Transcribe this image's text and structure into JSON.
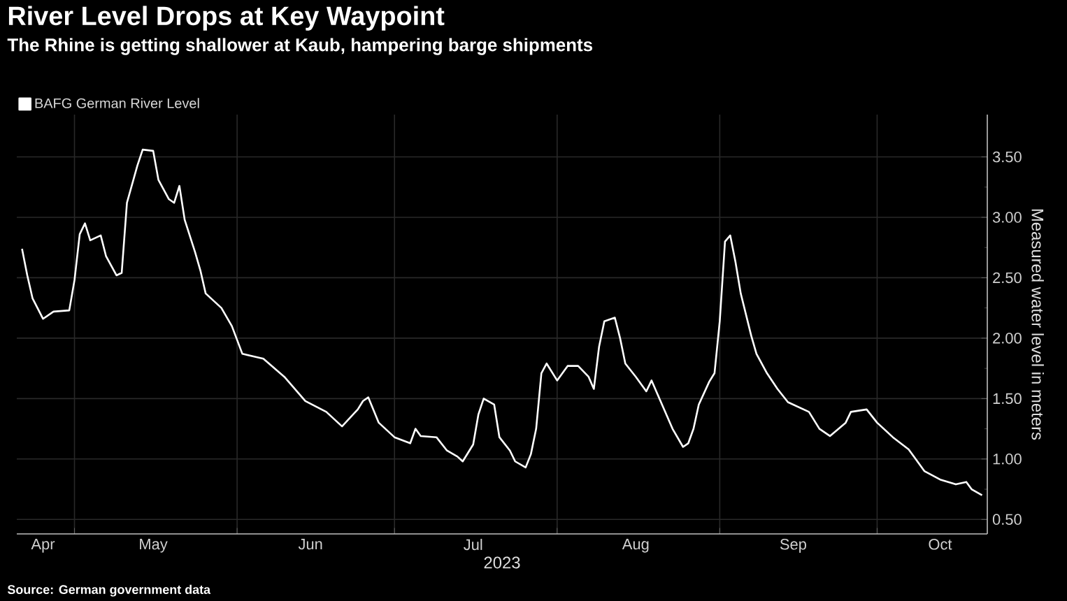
{
  "chart_data": {
    "type": "line",
    "title": "River Level Drops at Key Waypoint",
    "subtitle": "The Rhine is getting shallower at Kaub, hampering barge shipments",
    "xlabel": "2023",
    "ylabel": "Measured water level in meters",
    "annotations": [
      "Source: German government data"
    ],
    "x": [
      "2023-04-21",
      "2023-04-22",
      "2023-04-23",
      "2023-04-25",
      "2023-04-27",
      "2023-04-30",
      "2023-05-01",
      "2023-05-02",
      "2023-05-03",
      "2023-05-04",
      "2023-05-06",
      "2023-05-07",
      "2023-05-09",
      "2023-05-10",
      "2023-05-11",
      "2023-05-13",
      "2023-05-14",
      "2023-05-16",
      "2023-05-17",
      "2023-05-19",
      "2023-05-20",
      "2023-05-21",
      "2023-05-22",
      "2023-05-24",
      "2023-05-25",
      "2023-05-26",
      "2023-05-29",
      "2023-05-31",
      "2023-06-02",
      "2023-06-06",
      "2023-06-10",
      "2023-06-14",
      "2023-06-18",
      "2023-06-21",
      "2023-06-24",
      "2023-06-25",
      "2023-06-26",
      "2023-06-28",
      "2023-07-01",
      "2023-07-04",
      "2023-07-05",
      "2023-07-06",
      "2023-07-09",
      "2023-07-11",
      "2023-07-13",
      "2023-07-14",
      "2023-07-16",
      "2023-07-17",
      "2023-07-18",
      "2023-07-20",
      "2023-07-21",
      "2023-07-23",
      "2023-07-24",
      "2023-07-26",
      "2023-07-27",
      "2023-07-28",
      "2023-07-29",
      "2023-07-30",
      "2023-08-01",
      "2023-08-03",
      "2023-08-05",
      "2023-08-07",
      "2023-08-08",
      "2023-08-09",
      "2023-08-10",
      "2023-08-12",
      "2023-08-13",
      "2023-08-14",
      "2023-08-16",
      "2023-08-18",
      "2023-08-19",
      "2023-08-21",
      "2023-08-23",
      "2023-08-25",
      "2023-08-26",
      "2023-08-27",
      "2023-08-28",
      "2023-08-30",
      "2023-08-31",
      "2023-09-01",
      "2023-09-02",
      "2023-09-03",
      "2023-09-04",
      "2023-09-05",
      "2023-09-07",
      "2023-09-08",
      "2023-09-10",
      "2023-09-12",
      "2023-09-14",
      "2023-09-18",
      "2023-09-20",
      "2023-09-22",
      "2023-09-25",
      "2023-09-26",
      "2023-09-29",
      "2023-10-01",
      "2023-10-04",
      "2023-10-07",
      "2023-10-08",
      "2023-10-10",
      "2023-10-13",
      "2023-10-16",
      "2023-10-18",
      "2023-10-19",
      "2023-10-21"
    ],
    "series": [
      {
        "name": "BAFG German River Level",
        "color": "#ffffff",
        "values": [
          2.74,
          2.52,
          2.33,
          2.16,
          2.22,
          2.23,
          2.48,
          2.86,
          2.95,
          2.81,
          2.85,
          2.68,
          2.52,
          2.54,
          3.12,
          3.43,
          3.56,
          3.55,
          3.31,
          3.15,
          3.12,
          3.26,
          2.98,
          2.71,
          2.56,
          2.37,
          2.25,
          2.1,
          1.87,
          1.83,
          1.68,
          1.48,
          1.39,
          1.27,
          1.41,
          1.48,
          1.51,
          1.3,
          1.18,
          1.13,
          1.25,
          1.19,
          1.18,
          1.07,
          1.02,
          0.98,
          1.12,
          1.37,
          1.5,
          1.45,
          1.18,
          1.07,
          0.98,
          0.93,
          1.04,
          1.25,
          1.71,
          1.79,
          1.65,
          1.77,
          1.77,
          1.68,
          1.58,
          1.93,
          2.14,
          2.17,
          2.0,
          1.79,
          1.68,
          1.56,
          1.65,
          1.45,
          1.25,
          1.1,
          1.13,
          1.25,
          1.45,
          1.64,
          1.71,
          2.14,
          2.8,
          2.85,
          2.63,
          2.37,
          2.02,
          1.87,
          1.71,
          1.58,
          1.47,
          1.39,
          1.25,
          1.19,
          1.3,
          1.39,
          1.41,
          1.3,
          1.18,
          1.08,
          1.02,
          0.9,
          0.83,
          0.79,
          0.81,
          0.75,
          0.7
        ]
      }
    ],
    "xlim": [
      "2023-04-20",
      "2023-10-22"
    ],
    "xticks": [
      {
        "value": "2023-05-01",
        "label": null
      },
      {
        "value": "2023-06-01",
        "label": null
      },
      {
        "value": "2023-07-01",
        "label": null
      },
      {
        "value": "2023-08-01",
        "label": null
      },
      {
        "value": "2023-09-01",
        "label": null
      },
      {
        "value": "2023-10-01",
        "label": null
      },
      {
        "value": "2023-04-25",
        "label": "Apr"
      },
      {
        "value": "2023-05-16",
        "label": "May"
      },
      {
        "value": "2023-06-15",
        "label": "Jun"
      },
      {
        "value": "2023-07-16",
        "label": "Jul"
      },
      {
        "value": "2023-08-16",
        "label": "Aug"
      },
      {
        "value": "2023-09-15",
        "label": "Sep"
      },
      {
        "value": "2023-10-13",
        "label": "Oct"
      }
    ],
    "ylim": [
      0.38,
      3.85
    ],
    "yticks": [
      {
        "value": 0.5,
        "label": "0.50"
      },
      {
        "value": 1.0,
        "label": "1.00"
      },
      {
        "value": 1.5,
        "label": "1.50"
      },
      {
        "value": 2.0,
        "label": "2.00"
      },
      {
        "value": 2.5,
        "label": "2.50"
      },
      {
        "value": 3.0,
        "label": "3.00"
      },
      {
        "value": 3.5,
        "label": "3.50"
      }
    ],
    "grid": true,
    "legend": "top left"
  }
}
